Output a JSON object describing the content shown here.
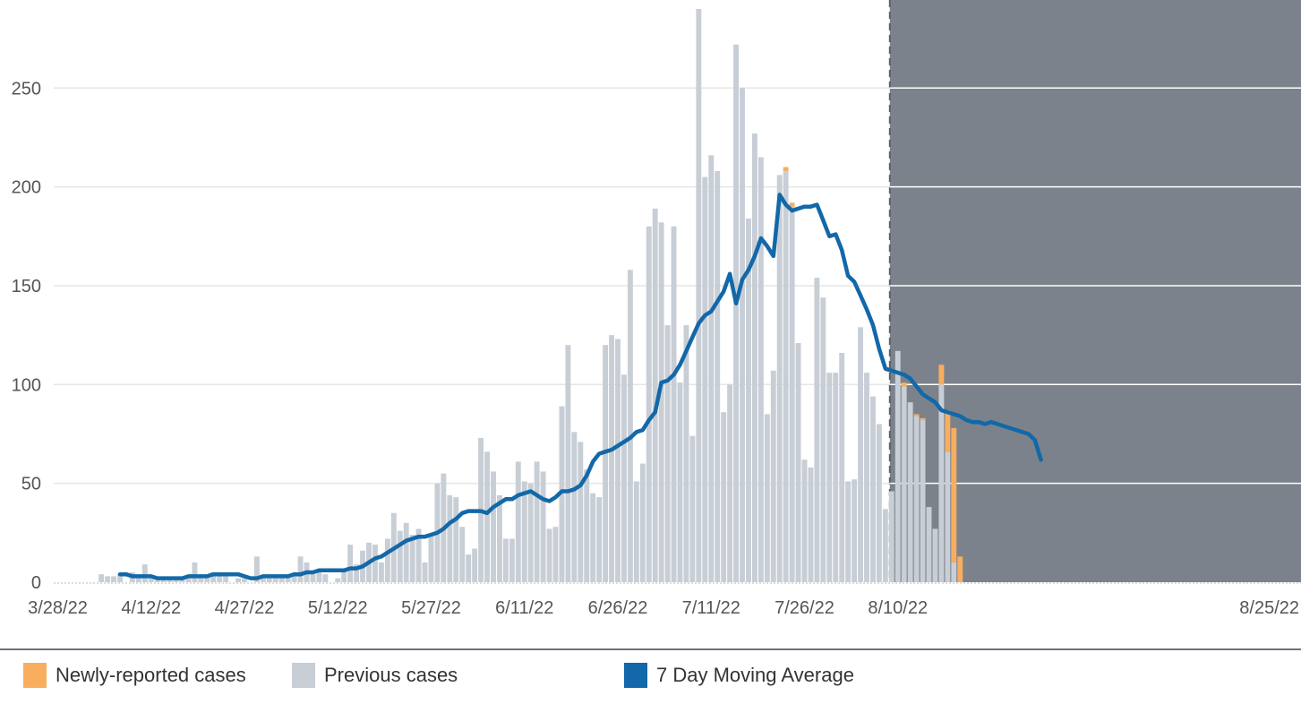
{
  "chart_data": {
    "type": "bar",
    "title": "",
    "xlabel": "",
    "ylabel": "",
    "ylim": [
      0,
      290
    ],
    "yticks": [
      0,
      50,
      100,
      150,
      200,
      250
    ],
    "x_start_date": "3/28/22",
    "x_tick_labels": [
      "3/28/22",
      "4/12/22",
      "4/27/22",
      "5/12/22",
      "5/27/22",
      "6/11/22",
      "6/26/22",
      "7/11/22",
      "7/26/22",
      "8/10/22",
      "8/25/22"
    ],
    "shaded_region_start_index": 134,
    "colors": {
      "newly_reported": "#f8ae5e",
      "previous": "#c8ced6",
      "moving_average": "#1268a8",
      "shaded_region": "#7c828b",
      "grid": "#e6e6e6"
    },
    "series": [
      {
        "name": "Previous cases",
        "values": [
          0,
          0,
          0,
          0,
          0,
          0,
          0,
          4,
          3,
          3,
          4,
          0,
          5,
          3,
          9,
          2,
          1,
          2,
          1,
          1,
          2,
          3,
          10,
          2,
          3,
          5,
          5,
          3,
          0,
          2,
          2,
          0,
          13,
          3,
          2,
          2,
          3,
          4,
          4,
          13,
          10,
          4,
          5,
          4,
          0,
          2,
          7,
          19,
          9,
          16,
          20,
          19,
          10,
          22,
          35,
          26,
          30,
          24,
          27,
          10,
          24,
          50,
          55,
          44,
          43,
          28,
          14,
          17,
          73,
          66,
          56,
          44,
          22,
          22,
          61,
          51,
          50,
          61,
          56,
          27,
          28,
          89,
          120,
          76,
          71,
          57,
          45,
          43,
          120,
          125,
          123,
          105,
          158,
          51,
          60,
          180,
          189,
          182,
          130,
          180,
          101,
          130,
          74,
          290,
          205,
          216,
          208,
          86,
          100,
          272,
          250,
          184,
          227,
          215,
          85,
          107,
          206,
          208,
          190,
          121,
          62,
          58,
          154,
          144,
          106,
          106,
          116,
          51,
          52,
          129,
          106,
          94,
          80,
          37,
          46,
          117,
          99,
          91,
          84,
          82,
          38,
          27,
          100,
          66,
          10,
          0,
          0
        ],
        "newly_reported": [
          0,
          0,
          0,
          0,
          0,
          0,
          0,
          0,
          0,
          0,
          0,
          0,
          0,
          0,
          0,
          0,
          0,
          0,
          0,
          0,
          0,
          0,
          0,
          0,
          0,
          0,
          0,
          0,
          0,
          0,
          0,
          0,
          0,
          0,
          0,
          0,
          0,
          0,
          0,
          0,
          0,
          0,
          0,
          0,
          0,
          0,
          0,
          0,
          0,
          0,
          0,
          0,
          0,
          0,
          0,
          0,
          0,
          0,
          0,
          0,
          0,
          0,
          0,
          0,
          0,
          0,
          0,
          0,
          0,
          0,
          0,
          0,
          0,
          0,
          0,
          0,
          0,
          0,
          0,
          0,
          0,
          0,
          0,
          0,
          0,
          0,
          0,
          0,
          0,
          0,
          0,
          0,
          0,
          0,
          0,
          0,
          0,
          0,
          0,
          0,
          0,
          0,
          0,
          0,
          0,
          0,
          0,
          0,
          0,
          0,
          0,
          0,
          0,
          0,
          0,
          0,
          0,
          2,
          2,
          0,
          0,
          0,
          0,
          0,
          0,
          0,
          0,
          0,
          0,
          0,
          0,
          0,
          0,
          0,
          0,
          0,
          2,
          0,
          1,
          1,
          0,
          0,
          10,
          21,
          68,
          13,
          0
        ]
      }
    ],
    "moving_average": {
      "name": "7 Day Moving Average",
      "start_index": 10,
      "values": [
        4,
        4,
        3,
        3,
        3,
        3,
        2,
        2,
        2,
        2,
        2,
        3,
        3,
        3,
        3,
        4,
        4,
        4,
        4,
        4,
        3,
        2,
        2,
        3,
        3,
        3,
        3,
        3,
        4,
        4,
        5,
        5,
        6,
        6,
        6,
        6,
        6,
        7,
        7,
        8,
        10,
        12,
        13,
        15,
        17,
        19,
        21,
        22,
        23,
        23,
        24,
        25,
        27,
        30,
        32,
        35,
        36,
        36,
        36,
        35,
        38,
        40,
        42,
        42,
        44,
        45,
        46,
        44,
        42,
        41,
        43,
        46,
        46,
        47,
        49,
        54,
        61,
        65,
        66,
        67,
        69,
        71,
        73,
        76,
        77,
        82,
        86,
        101,
        102,
        105,
        110,
        117,
        124,
        131,
        135,
        137,
        142,
        147,
        156,
        141,
        153,
        158,
        165,
        174,
        170,
        165,
        196,
        191,
        188,
        189,
        190,
        190,
        191,
        183,
        175,
        176,
        168,
        155,
        152,
        145,
        138,
        130,
        118,
        108,
        107,
        106,
        105,
        103,
        99,
        95,
        93,
        91,
        87,
        86,
        85,
        84,
        82,
        81,
        81,
        80,
        81,
        80,
        79,
        78,
        77,
        76,
        75,
        72,
        62
      ]
    },
    "legend": [
      {
        "label": "Newly-reported cases",
        "color": "#f8ae5e"
      },
      {
        "label": "Previous cases",
        "color": "#c8ced6"
      },
      {
        "label": "7 Day Moving Average",
        "color": "#1268a8"
      }
    ]
  }
}
